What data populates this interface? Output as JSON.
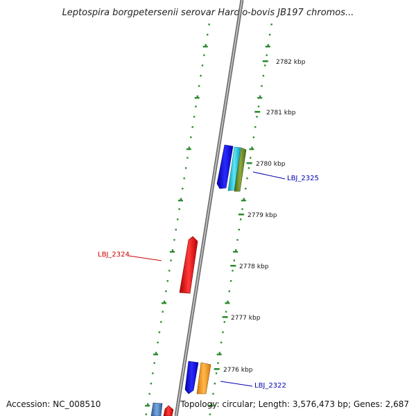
{
  "title": "Leptospira borgpetersenii serovar Hardjo-bovis JB197 chromos...",
  "footer": {
    "accession": "Accession: NC_008510",
    "topology": "Topology: circular; Length: 3,576,473 bp; Genes: 2,687"
  },
  "colors": {
    "backbone": "#8c8c8c",
    "tick_marks": "#2e8b2e",
    "label_red": "#cc0000",
    "label_blue": "#0000b0"
  },
  "ticks": [
    {
      "label": "2782 kbp"
    },
    {
      "label": "2781 kbp"
    },
    {
      "label": "2780 kbp"
    },
    {
      "label": "2779 kbp"
    },
    {
      "label": "2778 kbp"
    },
    {
      "label": "2777 kbp"
    },
    {
      "label": "2776 kbp"
    }
  ],
  "gene_labels": [
    {
      "label": "LBJ_2325",
      "color": "#0000b0"
    },
    {
      "label": "LBJ_2324",
      "color": "#cc0000"
    },
    {
      "label": "LBJ_2322",
      "color": "#0000b0"
    }
  ],
  "gene_colors": [
    "#1010ee",
    "#20c0d8",
    "#6b8a2a",
    "#e51a1a",
    "#f39c12",
    "#4a86c8"
  ]
}
